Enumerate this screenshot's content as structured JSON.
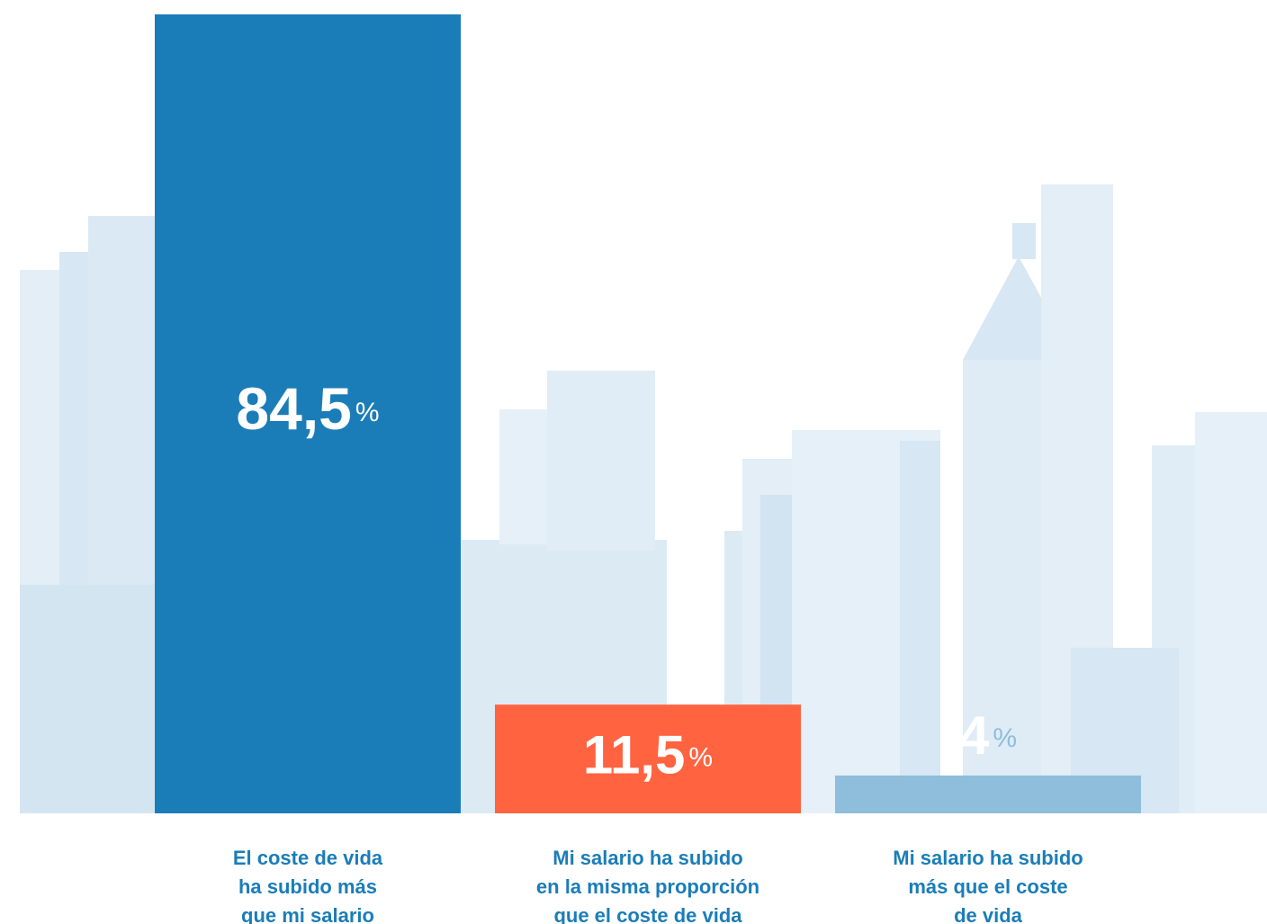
{
  "chart_data": {
    "type": "bar",
    "categories": [
      [
        "El coste de vida",
        "ha subido más",
        "que mi salario"
      ],
      [
        "Mi salario ha subido",
        "en la misma proporción",
        "que el coste de vida"
      ],
      [
        "Mi salario ha subido",
        "más que el coste",
        "de vida"
      ]
    ],
    "values": [
      84.5,
      11.5,
      4
    ],
    "value_labels": [
      "84,5",
      "11,5",
      "4"
    ],
    "value_suffix": "%",
    "colors": [
      "#1a7db8",
      "#ff6340",
      "#8ebedb"
    ]
  }
}
